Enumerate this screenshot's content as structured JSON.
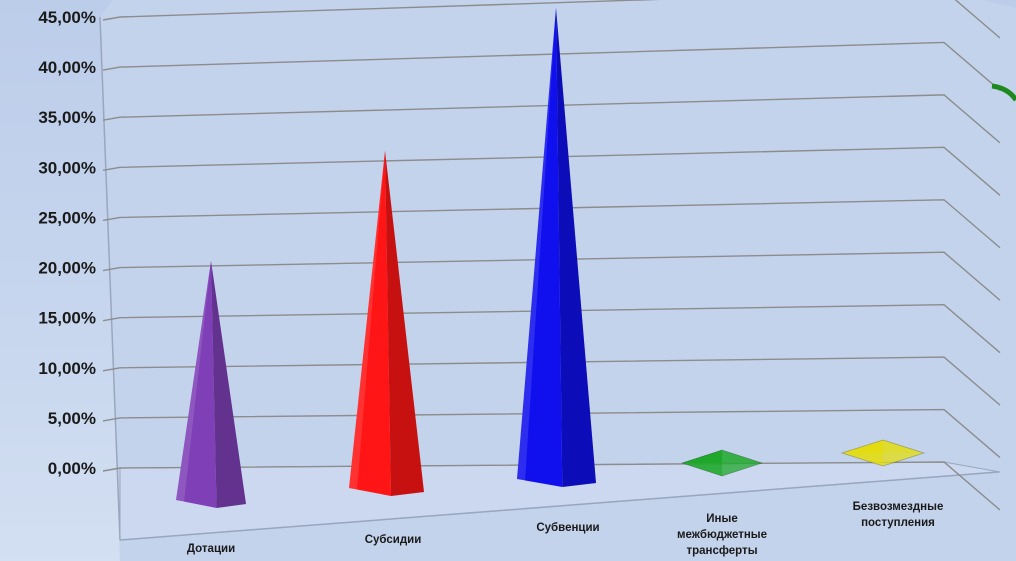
{
  "chart_data": {
    "type": "bar",
    "style": "3d-pyramid",
    "title": "",
    "xlabel": "",
    "ylabel": "",
    "ylim": [
      0,
      45
    ],
    "y_ticks": [
      "0,00%",
      "5,00%",
      "10,00%",
      "15,00%",
      "20,00%",
      "25,00%",
      "30,00%",
      "35,00%",
      "40,00%",
      "45,00%"
    ],
    "categories": [
      [
        "Дотации"
      ],
      [
        "Субсидии"
      ],
      [
        "Субвенции"
      ],
      [
        "Иные",
        "межбюджетные",
        "трансферты"
      ],
      [
        "Безвозмездные",
        "поступления"
      ]
    ],
    "values": [
      20.5,
      31.0,
      44.5,
      0.3,
      0.2
    ],
    "colors": [
      "#7f3fb7",
      "#ff1515",
      "#1010ee",
      "#1ea82a",
      "#e3dc10"
    ],
    "grid": true,
    "legend": "none"
  }
}
